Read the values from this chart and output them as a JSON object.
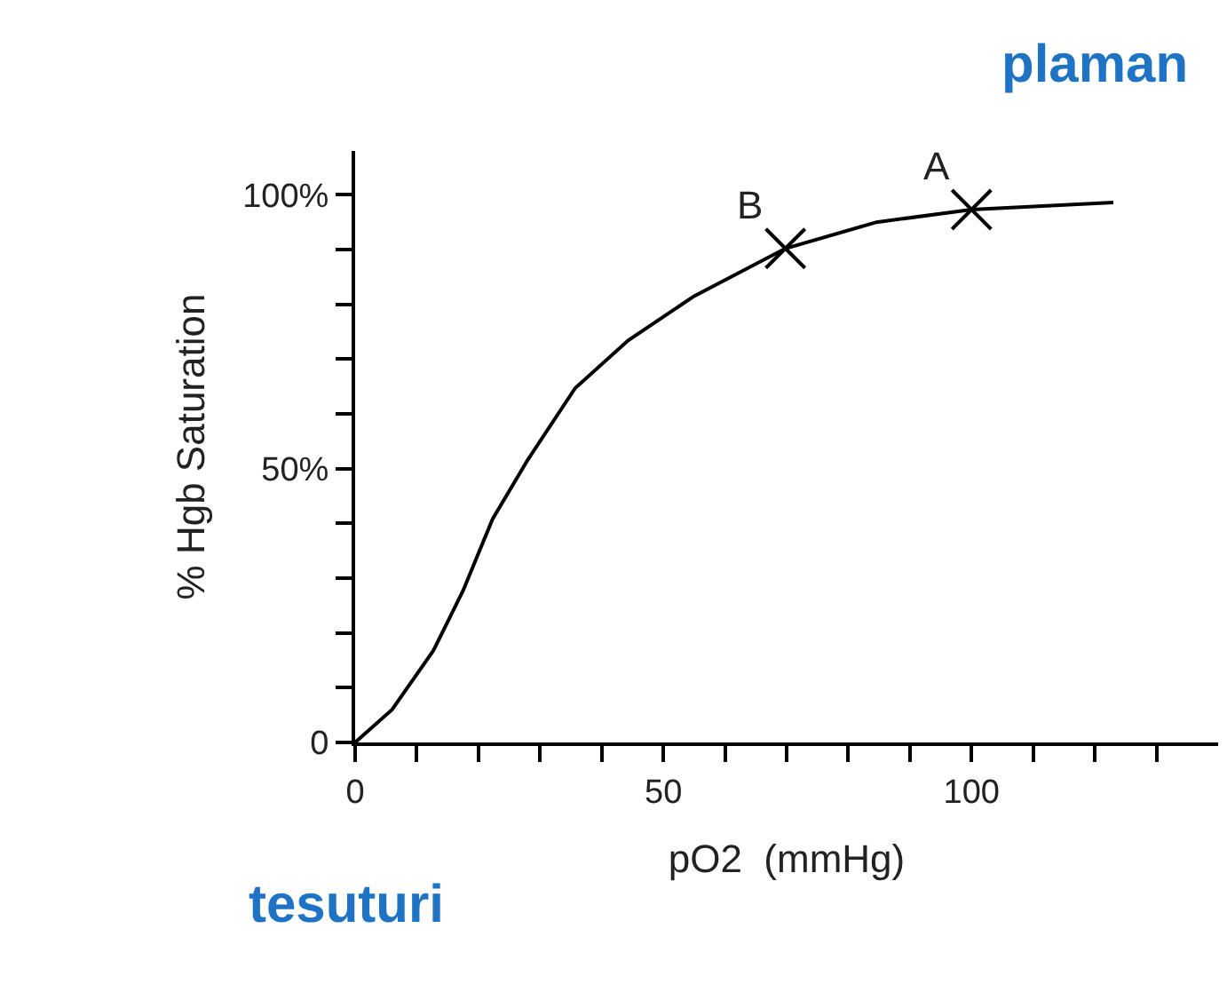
{
  "chart_data": {
    "type": "line",
    "xlabel": "pO2  (mmHg)",
    "ylabel": "% Hgb Saturation",
    "xlim": [
      0,
      140
    ],
    "ylim": [
      0,
      108
    ],
    "xticks": [
      0,
      {
        "value": 10,
        "label": null
      },
      {
        "value": 20,
        "label": null
      },
      {
        "value": 30,
        "label": null
      },
      {
        "value": 40,
        "label": null
      },
      50,
      {
        "value": 60,
        "label": null
      },
      {
        "value": 70,
        "label": null
      },
      {
        "value": 80,
        "label": null
      },
      {
        "value": 90,
        "label": null
      },
      100,
      {
        "value": 110,
        "label": null
      },
      {
        "value": 120,
        "label": null
      },
      {
        "value": 130,
        "label": null
      }
    ],
    "yticks": [
      0,
      {
        "value": 10,
        "label": null
      },
      {
        "value": 20,
        "label": null
      },
      {
        "value": 30,
        "label": null
      },
      {
        "value": 40,
        "label": null
      },
      {
        "value": 50,
        "label": "50%"
      },
      {
        "value": 60,
        "label": null
      },
      {
        "value": 70,
        "label": null
      },
      {
        "value": 80,
        "label": null
      },
      {
        "value": 90,
        "label": null
      },
      {
        "value": 100,
        "label": "100%"
      }
    ],
    "series": [
      {
        "color": "#000000",
        "marker": "none",
        "x": [
          0,
          6,
          12.7,
          17.5,
          22.3,
          28,
          35.7,
          44.3,
          55,
          69.8,
          84.6,
          100,
          123
        ],
        "values": [
          0,
          6,
          16.8,
          27.7,
          40.8,
          51.6,
          64.7,
          73.4,
          81.5,
          90.2,
          95,
          97.3,
          98.6
        ]
      },
      {
        "type": "scatter",
        "color": "#000000",
        "marker": "cross",
        "x": [
          69.8,
          100
        ],
        "values": [
          90.2,
          97.3
        ]
      }
    ],
    "annotations": [
      {
        "text": "B",
        "x": 69.8,
        "y": 90.2
      },
      {
        "text": "A",
        "x": 100,
        "y": 97.3
      },
      "plaman",
      "tesuturi"
    ]
  }
}
